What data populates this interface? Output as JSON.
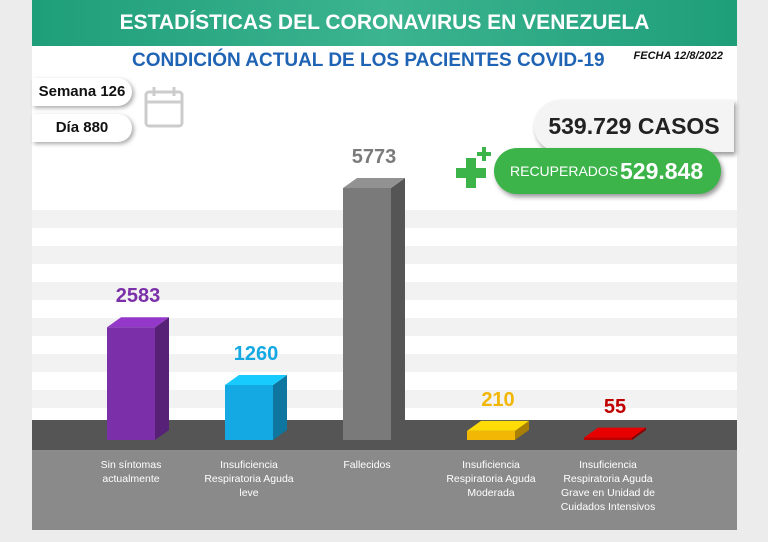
{
  "chart_data": {
    "type": "bar",
    "title": "ESTADÍSTICAS DEL CORONAVIRUS EN VENEZUELA",
    "subtitle": "CONDICIÓN ACTUAL DE LOS PACIENTES COVID-19",
    "categories": [
      "Sin síntomas actualmente",
      "Insuficiencia Respiratoria Aguda leve",
      "Fallecidos",
      "Insuficiencia Respiratoria Aguda Moderada",
      "Insuficiencia Respiratoria Aguda Grave en Unidad de Cuidados Intensivos"
    ],
    "values": [
      2583,
      1260,
      5773,
      210,
      55
    ],
    "colors": [
      "#7b2fa8",
      "#14a9e3",
      "#7a7a7a",
      "#f2b705",
      "#c00000"
    ]
  },
  "header": {
    "date": "FECHA 12/8/2022",
    "week": "Semana 126",
    "day": "Día 880",
    "cases": "539.729 CASOS",
    "recovered_label": "RECUPERADOS",
    "recovered_value": "529.848"
  }
}
